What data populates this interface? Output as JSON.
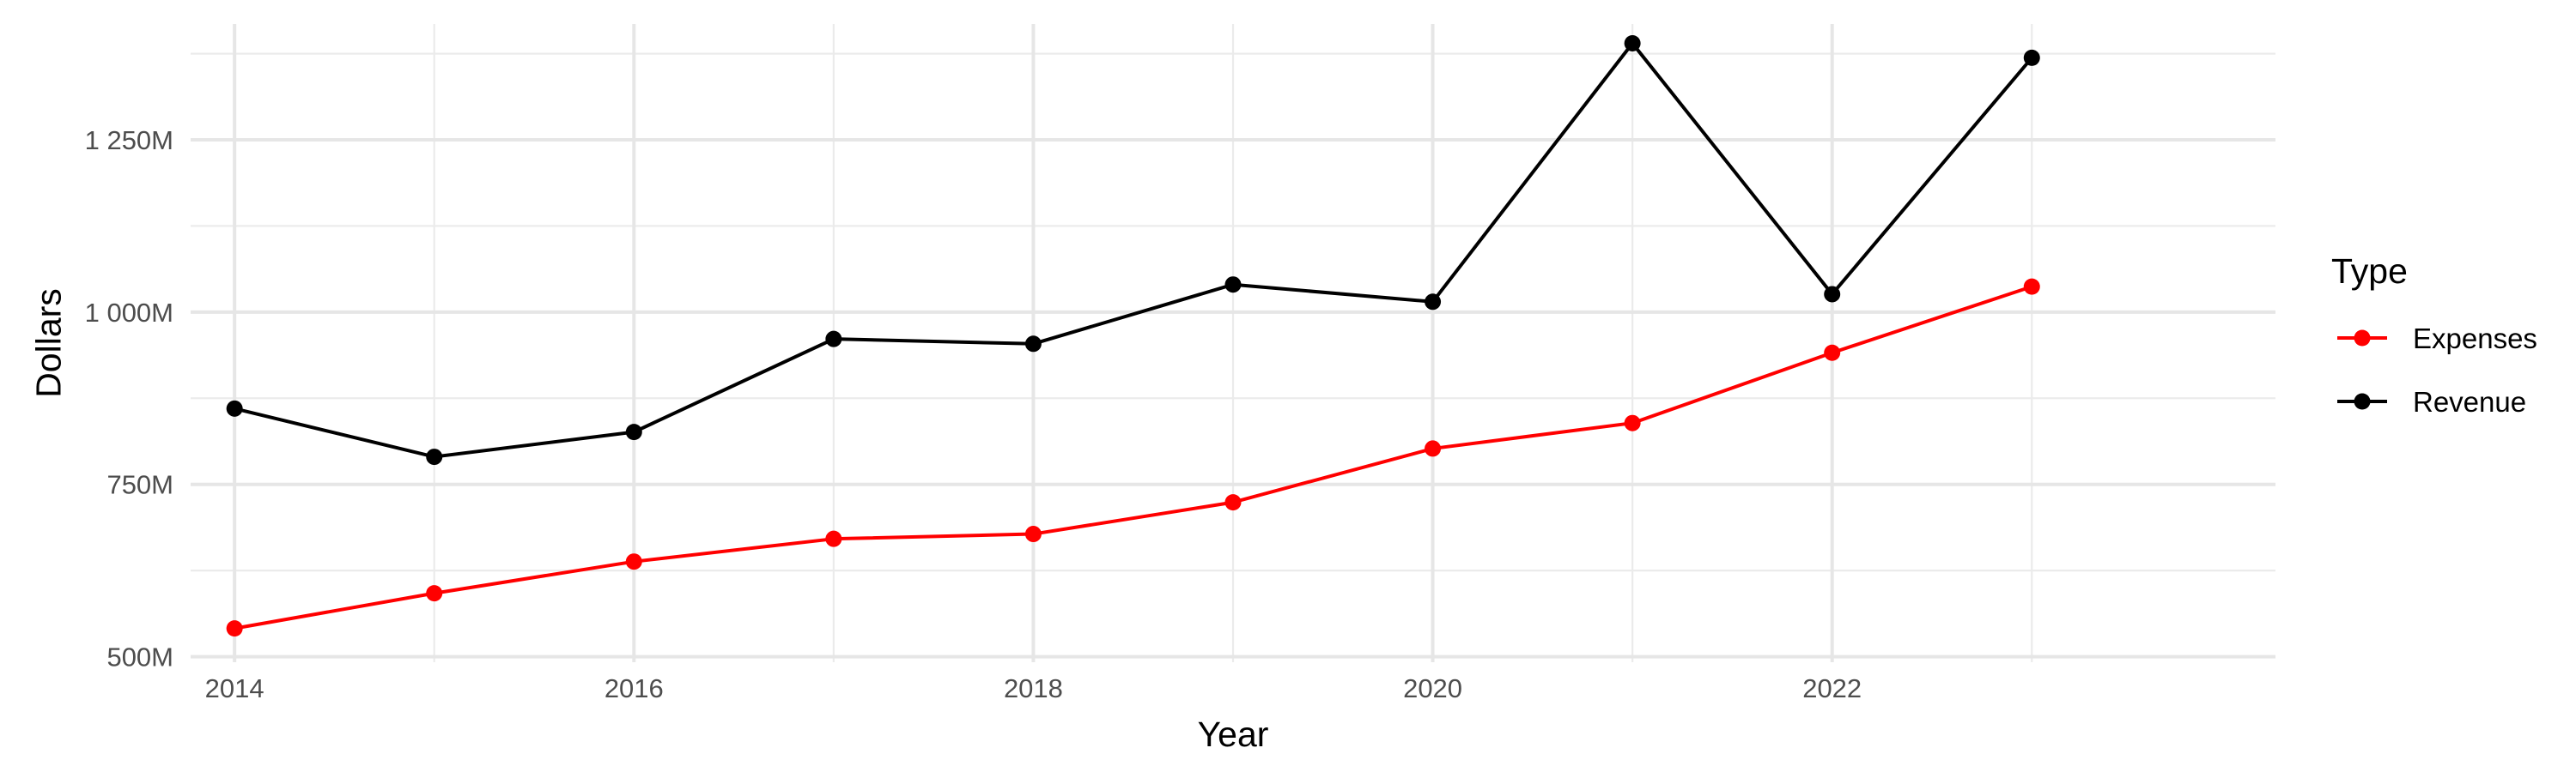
{
  "chart_data": {
    "type": "line",
    "xlabel": "Year",
    "ylabel": "Dollars",
    "x": [
      2014,
      2015,
      2016,
      2017,
      2018,
      2019,
      2020,
      2021,
      2022,
      2023
    ],
    "xlim": [
      2013.78,
      2024.22
    ],
    "ylim": [
      492000000,
      1418000000
    ],
    "x_ticks": [
      2014,
      2016,
      2018,
      2020,
      2022
    ],
    "x_tick_labels": [
      "2014",
      "2016",
      "2018",
      "2020",
      "2022"
    ],
    "x_minor_ticks": [
      2015,
      2017,
      2019,
      2021,
      2023
    ],
    "y_ticks": [
      500000000,
      750000000,
      1000000000,
      1250000000
    ],
    "y_tick_labels": [
      "500M",
      "750M",
      "1 000M",
      "1 250M"
    ],
    "y_minor_ticks": [
      625000000,
      875000000,
      1125000000,
      1375000000
    ],
    "grid": true,
    "legend": {
      "title": "Type",
      "position": "right"
    },
    "series": [
      {
        "name": "Expenses",
        "color": "#ff0000",
        "values": [
          541000000,
          592000000,
          638000000,
          671000000,
          678000000,
          724000000,
          802000000,
          839000000,
          941000000,
          1037000000
        ]
      },
      {
        "name": "Revenue",
        "color": "#000000",
        "values": [
          860000000,
          790000000,
          826000000,
          961000000,
          954000000,
          1040000000,
          1015000000,
          1390000000,
          1026000000,
          1369000000
        ]
      }
    ]
  }
}
